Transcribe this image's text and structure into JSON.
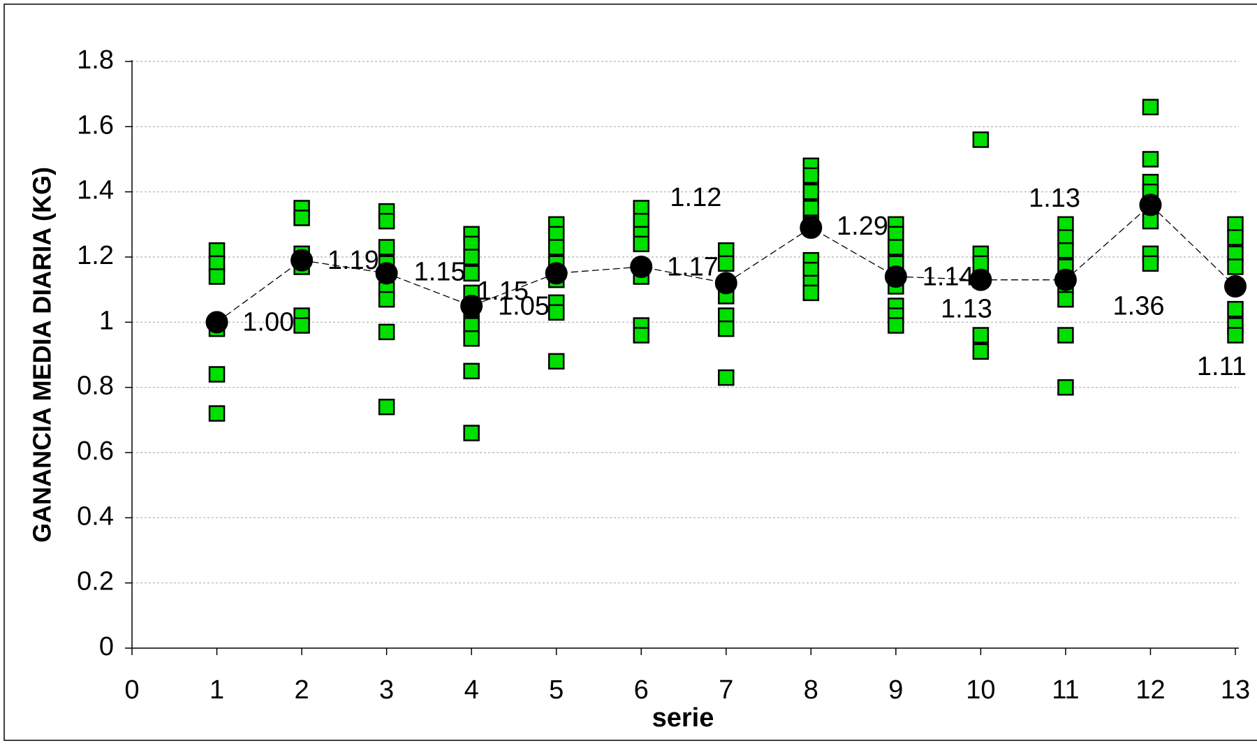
{
  "chart_data": {
    "type": "scatter",
    "xlabel": "serie",
    "ylabel": "GANANCIA MEDIA DIARIA (KG)",
    "xlim": [
      0,
      13
    ],
    "ylim": [
      0,
      1.8
    ],
    "xticks": [
      0,
      1,
      2,
      3,
      4,
      5,
      6,
      7,
      8,
      9,
      10,
      11,
      12,
      13
    ],
    "yticks": [
      0,
      0.2,
      0.4,
      0.6,
      0.8,
      1,
      1.2,
      1.4,
      1.6,
      1.8
    ],
    "grid": true,
    "series": [
      {
        "color": "#00e000",
        "marker": "square",
        "x": [
          1,
          1,
          1,
          1,
          1,
          1,
          2,
          2,
          2,
          2,
          2,
          2,
          3,
          3,
          3,
          3,
          3,
          3,
          3,
          3,
          4,
          4,
          4,
          4,
          4,
          4,
          4,
          4,
          4,
          4,
          5,
          5,
          5,
          5,
          5,
          5,
          5,
          5,
          6,
          6,
          6,
          6,
          6,
          6,
          6,
          6,
          7,
          7,
          7,
          7,
          7,
          7,
          7,
          8,
          8,
          8,
          8,
          8,
          8,
          8,
          8,
          8,
          9,
          9,
          9,
          9,
          9,
          9,
          9,
          9,
          9,
          10,
          10,
          10,
          10,
          10,
          10,
          11,
          11,
          11,
          11,
          11,
          11,
          11,
          11,
          12,
          12,
          12,
          12,
          12,
          12,
          12,
          13,
          13,
          13,
          13,
          13,
          13,
          13,
          13
        ],
        "values": [
          1.22,
          1.18,
          1.14,
          0.98,
          0.84,
          0.72,
          1.35,
          1.32,
          1.21,
          1.17,
          1.02,
          0.99,
          1.34,
          1.31,
          1.23,
          1.18,
          1.1,
          1.07,
          0.97,
          0.74,
          1.27,
          1.24,
          1.2,
          1.15,
          1.09,
          1.04,
          0.99,
          0.95,
          0.85,
          0.66,
          1.3,
          1.27,
          1.23,
          1.18,
          1.13,
          1.06,
          1.03,
          0.88,
          1.35,
          1.31,
          1.27,
          1.24,
          1.17,
          1.14,
          0.99,
          0.96,
          1.22,
          1.18,
          1.11,
          1.08,
          1.02,
          0.98,
          0.83,
          1.48,
          1.45,
          1.4,
          1.35,
          1.3,
          1.19,
          1.16,
          1.12,
          1.09,
          1.3,
          1.27,
          1.23,
          1.18,
          1.14,
          1.11,
          1.05,
          1.02,
          0.99,
          1.56,
          1.21,
          1.18,
          1.13,
          0.96,
          0.91,
          1.3,
          1.26,
          1.22,
          1.17,
          1.11,
          1.07,
          0.96,
          0.8,
          1.66,
          1.5,
          1.43,
          1.4,
          1.31,
          1.21,
          1.18,
          1.3,
          1.26,
          1.21,
          1.17,
          1.11,
          1.04,
          0.99,
          0.96
        ]
      },
      {
        "color": "#000000",
        "marker": "circle",
        "line": "dashed",
        "x": [
          1,
          2,
          3,
          4,
          5,
          6,
          7,
          8,
          9,
          10,
          11,
          12,
          13
        ],
        "values": [
          1.0,
          1.19,
          1.15,
          1.05,
          1.15,
          1.17,
          1.12,
          1.29,
          1.14,
          1.13,
          1.13,
          1.36,
          1.11
        ],
        "value_labels": [
          "1.00",
          "1.19",
          "1.15",
          "1.05",
          "1.15",
          "1.17",
          "1.12",
          "1.29",
          "1.14",
          "1.13",
          "1.13",
          "1.36",
          "1.11"
        ]
      }
    ]
  }
}
